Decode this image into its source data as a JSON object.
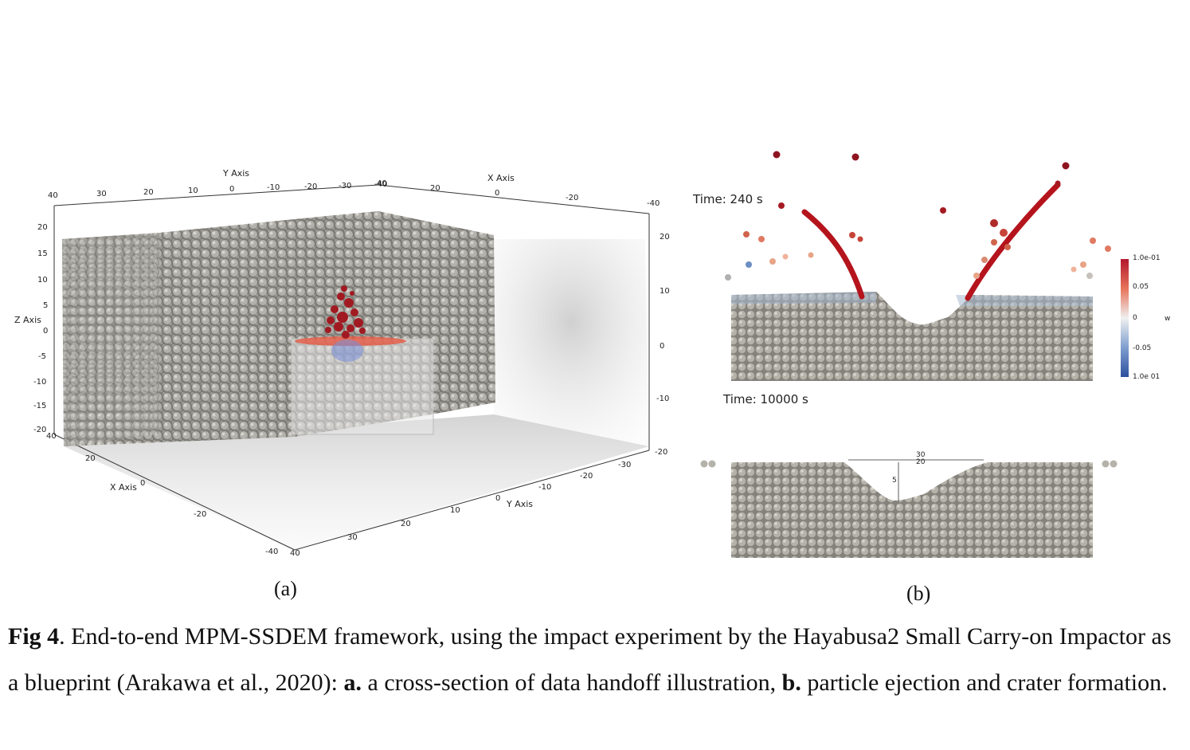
{
  "figure": {
    "panel_a": {
      "label": "(a)",
      "axes": {
        "y_axis_title": "Y Axis",
        "x_axis_title_top": "X Axis",
        "z_axis_title": "Z Axis",
        "x_axis_title_bottom": "X Axis",
        "y_axis_title_bottom": "Y Axis",
        "top_y_ticks": [
          "40",
          "30",
          "20",
          "10",
          "0",
          "-10",
          "-20",
          "-30",
          "-40"
        ],
        "top_x_ticks": [
          "40",
          "20",
          "0",
          "-20",
          "-40"
        ],
        "left_z_ticks": [
          "20",
          "15",
          "10",
          "5",
          "0",
          "-5",
          "-10",
          "-15",
          "-20"
        ],
        "right_z_ticks": [
          "20",
          "10",
          "0",
          "-10",
          "-20"
        ],
        "bottom_x_ticks": [
          "40",
          "20",
          "0",
          "-20",
          "-40"
        ],
        "bottom_y_ticks": [
          "40",
          "30",
          "20",
          "10",
          "0",
          "-10",
          "-20",
          "-30"
        ]
      }
    },
    "panel_b": {
      "label": "(b)",
      "time_top": "Time:   240 s",
      "time_bottom": "Time: 10000 s",
      "colorbar": {
        "title": "w",
        "ticks": [
          "1.0e-01",
          "0.05",
          "0",
          "-0.05",
          "1.0e 01"
        ],
        "color_high": "#b2182b",
        "color_mid": "#f0f0f0",
        "color_low": "#2c4f9e"
      },
      "ruler": {
        "label_top": "30",
        "label_mid": "20",
        "label_side": "5"
      }
    },
    "caption": {
      "prefix": "Fig 4",
      "text1": ". End-to-end MPM-SSDEM framework, using the impact experiment by the Hayabusa2 Small Carry-on Impactor as a blueprint (Arakawa et al., 2020): ",
      "a_label": "a.",
      "a_text": " a cross-section of data handoff illustration, ",
      "b_label": "b.",
      "b_text": " particle ejection and crater formation."
    }
  }
}
